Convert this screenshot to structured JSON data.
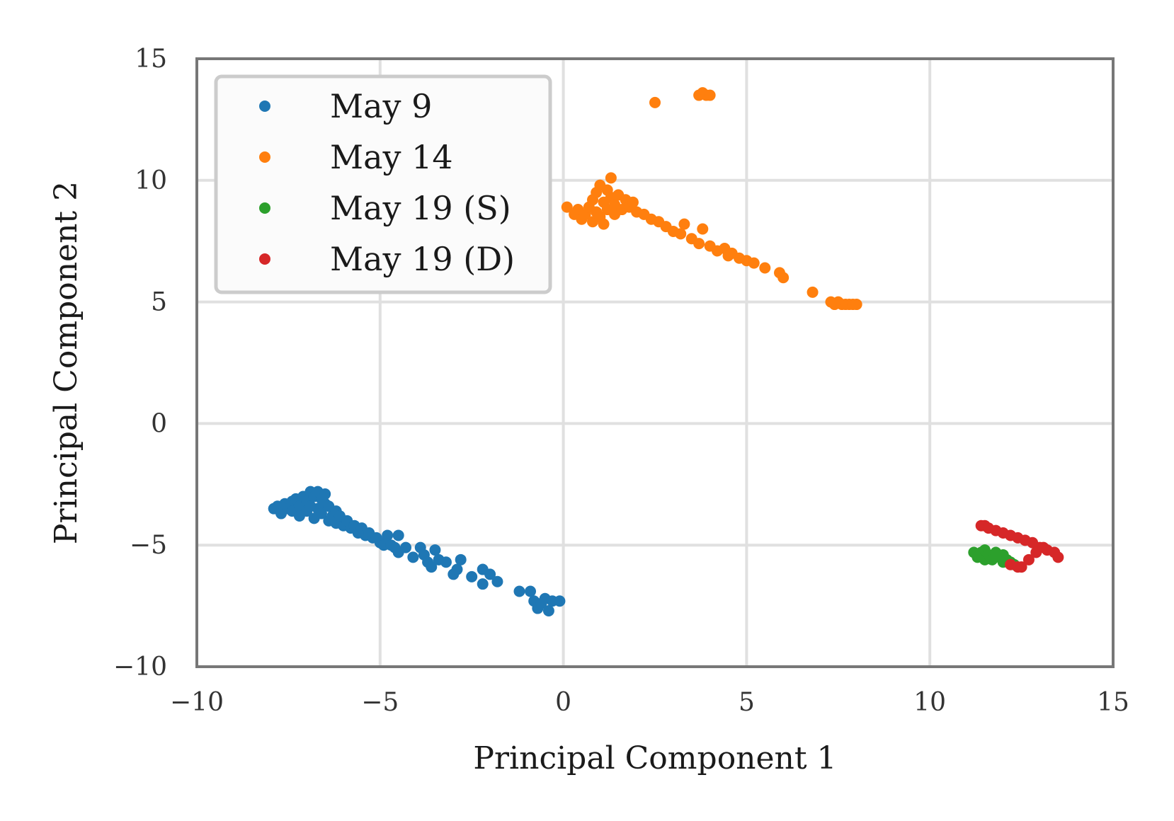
{
  "chart_data": {
    "type": "scatter",
    "title": "",
    "xlabel": "Principal Component 1",
    "ylabel": "Principal Component 2",
    "xlim": [
      -10,
      15
    ],
    "ylim": [
      -10,
      15
    ],
    "xticks": [
      -10,
      -5,
      0,
      5,
      10,
      15
    ],
    "yticks": [
      -10,
      -5,
      0,
      5,
      10,
      15
    ],
    "xtick_labels": [
      "−10",
      "−5",
      "0",
      "5",
      "10",
      "15"
    ],
    "ytick_labels": [
      "−10",
      "−5",
      "0",
      "5",
      "10",
      "15"
    ],
    "grid": true,
    "legend_position": "top-left",
    "series": [
      {
        "name": "May 9",
        "color": "#1f77b4",
        "points": [
          [
            -7.9,
            -3.5
          ],
          [
            -7.8,
            -3.4
          ],
          [
            -7.7,
            -3.7
          ],
          [
            -7.6,
            -3.3
          ],
          [
            -7.5,
            -3.5
          ],
          [
            -7.4,
            -3.2
          ],
          [
            -7.4,
            -3.6
          ],
          [
            -7.3,
            -3.1
          ],
          [
            -7.2,
            -3.4
          ],
          [
            -7.2,
            -3.8
          ],
          [
            -7.1,
            -3.0
          ],
          [
            -7.0,
            -3.2
          ],
          [
            -7.0,
            -3.6
          ],
          [
            -6.9,
            -2.8
          ],
          [
            -6.9,
            -3.4
          ],
          [
            -6.8,
            -3.0
          ],
          [
            -6.8,
            -3.9
          ],
          [
            -6.7,
            -2.8
          ],
          [
            -6.7,
            -3.5
          ],
          [
            -6.6,
            -3.1
          ],
          [
            -6.6,
            -3.7
          ],
          [
            -6.5,
            -3.3
          ],
          [
            -6.5,
            -2.9
          ],
          [
            -6.4,
            -4.0
          ],
          [
            -6.4,
            -3.4
          ],
          [
            -6.3,
            -3.8
          ],
          [
            -6.2,
            -3.6
          ],
          [
            -6.2,
            -4.1
          ],
          [
            -6.1,
            -3.8
          ],
          [
            -6.0,
            -4.2
          ],
          [
            -5.9,
            -4.0
          ],
          [
            -5.8,
            -4.3
          ],
          [
            -5.7,
            -4.2
          ],
          [
            -5.6,
            -4.5
          ],
          [
            -5.5,
            -4.3
          ],
          [
            -5.4,
            -4.6
          ],
          [
            -5.3,
            -4.5
          ],
          [
            -5.2,
            -4.7
          ],
          [
            -5.1,
            -4.7
          ],
          [
            -5.0,
            -4.9
          ],
          [
            -4.9,
            -5.0
          ],
          [
            -4.8,
            -4.6
          ],
          [
            -4.7,
            -5.0
          ],
          [
            -4.6,
            -5.1
          ],
          [
            -4.5,
            -5.3
          ],
          [
            -4.5,
            -4.6
          ],
          [
            -4.3,
            -5.1
          ],
          [
            -4.1,
            -5.5
          ],
          [
            -3.9,
            -5.1
          ],
          [
            -3.8,
            -5.4
          ],
          [
            -3.7,
            -5.7
          ],
          [
            -3.6,
            -5.9
          ],
          [
            -3.5,
            -5.2
          ],
          [
            -3.4,
            -5.6
          ],
          [
            -3.2,
            -5.7
          ],
          [
            -3.0,
            -6.2
          ],
          [
            -2.9,
            -6.0
          ],
          [
            -2.8,
            -5.6
          ],
          [
            -2.5,
            -6.3
          ],
          [
            -2.2,
            -6.0
          ],
          [
            -2.2,
            -6.6
          ],
          [
            -2.0,
            -6.2
          ],
          [
            -1.8,
            -6.5
          ],
          [
            -1.2,
            -6.9
          ],
          [
            -0.9,
            -6.9
          ],
          [
            -0.8,
            -7.3
          ],
          [
            -0.7,
            -7.6
          ],
          [
            -0.6,
            -7.4
          ],
          [
            -0.5,
            -7.2
          ],
          [
            -0.4,
            -7.7
          ],
          [
            -0.3,
            -7.3
          ],
          [
            -0.1,
            -7.3
          ]
        ]
      },
      {
        "name": "May 14",
        "color": "#ff7f0e",
        "points": [
          [
            0.1,
            8.9
          ],
          [
            0.3,
            8.6
          ],
          [
            0.4,
            8.8
          ],
          [
            0.5,
            8.4
          ],
          [
            0.6,
            8.6
          ],
          [
            0.7,
            8.9
          ],
          [
            0.8,
            9.2
          ],
          [
            0.8,
            8.3
          ],
          [
            0.9,
            9.5
          ],
          [
            0.9,
            8.7
          ],
          [
            1.0,
            9.8
          ],
          [
            1.0,
            8.5
          ],
          [
            1.1,
            9.1
          ],
          [
            1.1,
            8.2
          ],
          [
            1.2,
            9.6
          ],
          [
            1.2,
            8.8
          ],
          [
            1.3,
            10.1
          ],
          [
            1.3,
            9.3
          ],
          [
            1.4,
            9.0
          ],
          [
            1.4,
            8.6
          ],
          [
            1.5,
            9.4
          ],
          [
            1.6,
            8.8
          ],
          [
            1.7,
            9.2
          ],
          [
            1.8,
            8.9
          ],
          [
            1.9,
            9.1
          ],
          [
            2.0,
            8.7
          ],
          [
            2.2,
            8.6
          ],
          [
            2.4,
            8.4
          ],
          [
            2.6,
            8.3
          ],
          [
            2.8,
            8.1
          ],
          [
            3.0,
            7.9
          ],
          [
            3.2,
            7.8
          ],
          [
            3.3,
            8.2
          ],
          [
            3.5,
            7.6
          ],
          [
            3.7,
            7.4
          ],
          [
            3.8,
            8.0
          ],
          [
            4.0,
            7.3
          ],
          [
            4.2,
            7.1
          ],
          [
            4.4,
            7.2
          ],
          [
            4.5,
            6.9
          ],
          [
            4.6,
            7.0
          ],
          [
            4.8,
            6.8
          ],
          [
            5.0,
            6.7
          ],
          [
            5.2,
            6.6
          ],
          [
            5.5,
            6.4
          ],
          [
            5.9,
            6.2
          ],
          [
            6.0,
            6.0
          ],
          [
            6.8,
            5.4
          ],
          [
            7.3,
            5.0
          ],
          [
            7.4,
            4.9
          ],
          [
            7.5,
            5.0
          ],
          [
            7.6,
            4.9
          ],
          [
            7.7,
            4.9
          ],
          [
            7.8,
            4.9
          ],
          [
            7.9,
            4.9
          ],
          [
            8.0,
            4.9
          ],
          [
            2.5,
            13.2
          ],
          [
            3.7,
            13.5
          ],
          [
            3.8,
            13.6
          ],
          [
            3.9,
            13.5
          ],
          [
            4.0,
            13.5
          ]
        ]
      },
      {
        "name": "May 19 (S)",
        "color": "#2ca02c",
        "points": [
          [
            11.2,
            -5.3
          ],
          [
            11.3,
            -5.5
          ],
          [
            11.4,
            -5.3
          ],
          [
            11.5,
            -5.6
          ],
          [
            11.5,
            -5.2
          ],
          [
            11.6,
            -5.4
          ],
          [
            11.7,
            -5.6
          ],
          [
            11.8,
            -5.3
          ],
          [
            11.9,
            -5.5
          ],
          [
            12.0,
            -5.4
          ],
          [
            12.1,
            -5.6
          ],
          [
            12.2,
            -5.7
          ],
          [
            12.3,
            -5.8
          ],
          [
            12.0,
            -5.7
          ]
        ]
      },
      {
        "name": "May 19 (D)",
        "color": "#d62728",
        "points": [
          [
            11.4,
            -4.2
          ],
          [
            11.5,
            -4.2
          ],
          [
            11.6,
            -4.3
          ],
          [
            11.8,
            -4.4
          ],
          [
            12.0,
            -4.5
          ],
          [
            12.2,
            -4.6
          ],
          [
            12.4,
            -4.7
          ],
          [
            12.6,
            -4.8
          ],
          [
            12.8,
            -4.9
          ],
          [
            13.0,
            -5.1
          ],
          [
            13.2,
            -5.2
          ],
          [
            13.4,
            -5.3
          ],
          [
            13.5,
            -5.5
          ],
          [
            12.2,
            -5.8
          ],
          [
            12.4,
            -5.9
          ],
          [
            12.5,
            -5.9
          ],
          [
            12.7,
            -5.6
          ],
          [
            12.9,
            -5.3
          ],
          [
            13.1,
            -5.1
          ]
        ]
      }
    ]
  }
}
